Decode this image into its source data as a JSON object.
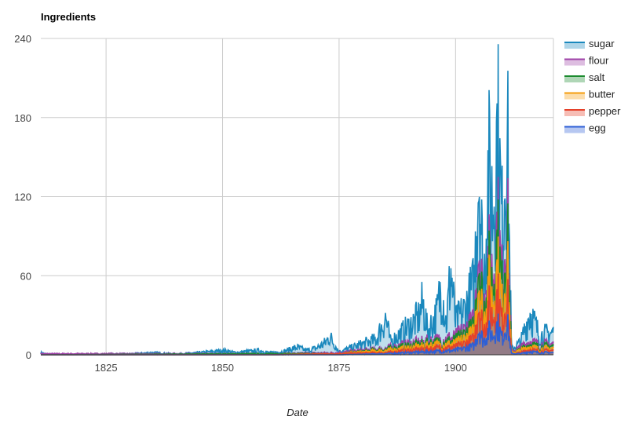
{
  "chart_data": {
    "type": "area",
    "title": "Ingredients",
    "xlabel": "Date",
    "ylabel": "",
    "xlim": [
      1811,
      1921
    ],
    "ylim": [
      0,
      240
    ],
    "x_ticks": [
      "1825",
      "1850",
      "1875",
      "1900"
    ],
    "y_ticks": [
      "0",
      "60",
      "120",
      "180",
      "240"
    ],
    "grid": true,
    "stacked": true,
    "legend_position": "right",
    "series": [
      {
        "name": "sugar",
        "color": "#1a88bd",
        "points": [
          [
            1811,
            2
          ],
          [
            1812,
            1
          ],
          [
            1825,
            0
          ],
          [
            1826,
            1
          ],
          [
            1830,
            1
          ],
          [
            1835,
            2
          ],
          [
            1840,
            1
          ],
          [
            1845,
            2
          ],
          [
            1848,
            3
          ],
          [
            1850,
            4
          ],
          [
            1853,
            2
          ],
          [
            1855,
            3
          ],
          [
            1858,
            4
          ],
          [
            1860,
            2
          ],
          [
            1863,
            3
          ],
          [
            1866,
            7
          ],
          [
            1868,
            4
          ],
          [
            1870,
            6
          ],
          [
            1872,
            11
          ],
          [
            1873,
            17
          ],
          [
            1875,
            3
          ],
          [
            1878,
            7
          ],
          [
            1880,
            10
          ],
          [
            1883,
            14
          ],
          [
            1885,
            35
          ],
          [
            1886,
            12
          ],
          [
            1888,
            19
          ],
          [
            1890,
            26
          ],
          [
            1892,
            34
          ],
          [
            1893,
            48
          ],
          [
            1894,
            22
          ],
          [
            1896,
            38
          ],
          [
            1897,
            67
          ],
          [
            1898,
            28
          ],
          [
            1899,
            78
          ],
          [
            1900,
            30
          ],
          [
            1902,
            42
          ],
          [
            1904,
            65
          ],
          [
            1905,
            185
          ],
          [
            1906,
            60
          ],
          [
            1907,
            170
          ],
          [
            1908,
            140
          ],
          [
            1909,
            210
          ],
          [
            1910,
            120
          ],
          [
            1911,
            225
          ],
          [
            1912,
            5
          ],
          [
            1914,
            12
          ],
          [
            1916,
            40
          ],
          [
            1918,
            18
          ],
          [
            1920,
            20
          ],
          [
            1921,
            21
          ]
        ]
      },
      {
        "name": "flour",
        "color": "#9e41a7",
        "points": [
          [
            1811,
            1
          ],
          [
            1860,
            1
          ],
          [
            1875,
            2
          ],
          [
            1885,
            6
          ],
          [
            1890,
            10
          ],
          [
            1895,
            13
          ],
          [
            1900,
            16
          ],
          [
            1904,
            30
          ],
          [
            1905,
            110
          ],
          [
            1906,
            40
          ],
          [
            1907,
            90
          ],
          [
            1908,
            75
          ],
          [
            1909,
            120
          ],
          [
            1910,
            70
          ],
          [
            1911,
            140
          ],
          [
            1912,
            3
          ],
          [
            1914,
            7
          ],
          [
            1916,
            13
          ],
          [
            1918,
            9
          ],
          [
            1920,
            10
          ],
          [
            1921,
            10
          ]
        ]
      },
      {
        "name": "salt",
        "color": "#1b8a2e",
        "points": [
          [
            1811,
            0
          ],
          [
            1860,
            1
          ],
          [
            1875,
            1
          ],
          [
            1885,
            5
          ],
          [
            1890,
            8
          ],
          [
            1895,
            11
          ],
          [
            1900,
            13
          ],
          [
            1904,
            25
          ],
          [
            1905,
            95
          ],
          [
            1906,
            35
          ],
          [
            1907,
            80
          ],
          [
            1908,
            65
          ],
          [
            1909,
            105
          ],
          [
            1910,
            60
          ],
          [
            1911,
            120
          ],
          [
            1912,
            2
          ],
          [
            1914,
            5
          ],
          [
            1916,
            10
          ],
          [
            1918,
            7
          ],
          [
            1920,
            8
          ],
          [
            1921,
            8
          ]
        ]
      },
      {
        "name": "butter",
        "color": "#f59d0e",
        "points": [
          [
            1811,
            0
          ],
          [
            1860,
            0
          ],
          [
            1875,
            1
          ],
          [
            1885,
            4
          ],
          [
            1890,
            6
          ],
          [
            1895,
            9
          ],
          [
            1900,
            10
          ],
          [
            1904,
            20
          ],
          [
            1905,
            75
          ],
          [
            1906,
            28
          ],
          [
            1907,
            65
          ],
          [
            1908,
            50
          ],
          [
            1909,
            80
          ],
          [
            1910,
            45
          ],
          [
            1911,
            90
          ],
          [
            1912,
            2
          ],
          [
            1914,
            4
          ],
          [
            1916,
            8
          ],
          [
            1918,
            5
          ],
          [
            1920,
            6
          ],
          [
            1921,
            6
          ]
        ]
      },
      {
        "name": "pepper",
        "color": "#e5412a",
        "points": [
          [
            1811,
            0
          ],
          [
            1860,
            0
          ],
          [
            1875,
            1
          ],
          [
            1885,
            2
          ],
          [
            1890,
            4
          ],
          [
            1895,
            6
          ],
          [
            1900,
            7
          ],
          [
            1904,
            14
          ],
          [
            1905,
            50
          ],
          [
            1906,
            20
          ],
          [
            1907,
            45
          ],
          [
            1908,
            35
          ],
          [
            1909,
            55
          ],
          [
            1910,
            30
          ],
          [
            1911,
            60
          ],
          [
            1912,
            1
          ],
          [
            1914,
            2
          ],
          [
            1916,
            5
          ],
          [
            1918,
            3
          ],
          [
            1920,
            4
          ],
          [
            1921,
            4
          ]
        ]
      },
      {
        "name": "egg",
        "color": "#2d5fd6",
        "points": [
          [
            1811,
            0
          ],
          [
            1860,
            0
          ],
          [
            1875,
            0
          ],
          [
            1885,
            1
          ],
          [
            1890,
            2
          ],
          [
            1895,
            3
          ],
          [
            1900,
            4
          ],
          [
            1904,
            8
          ],
          [
            1905,
            25
          ],
          [
            1906,
            12
          ],
          [
            1907,
            22
          ],
          [
            1908,
            18
          ],
          [
            1909,
            28
          ],
          [
            1910,
            15
          ],
          [
            1911,
            32
          ],
          [
            1912,
            1
          ],
          [
            1914,
            1
          ],
          [
            1916,
            3
          ],
          [
            1918,
            2
          ],
          [
            1920,
            2
          ],
          [
            1921,
            2
          ]
        ]
      }
    ]
  }
}
